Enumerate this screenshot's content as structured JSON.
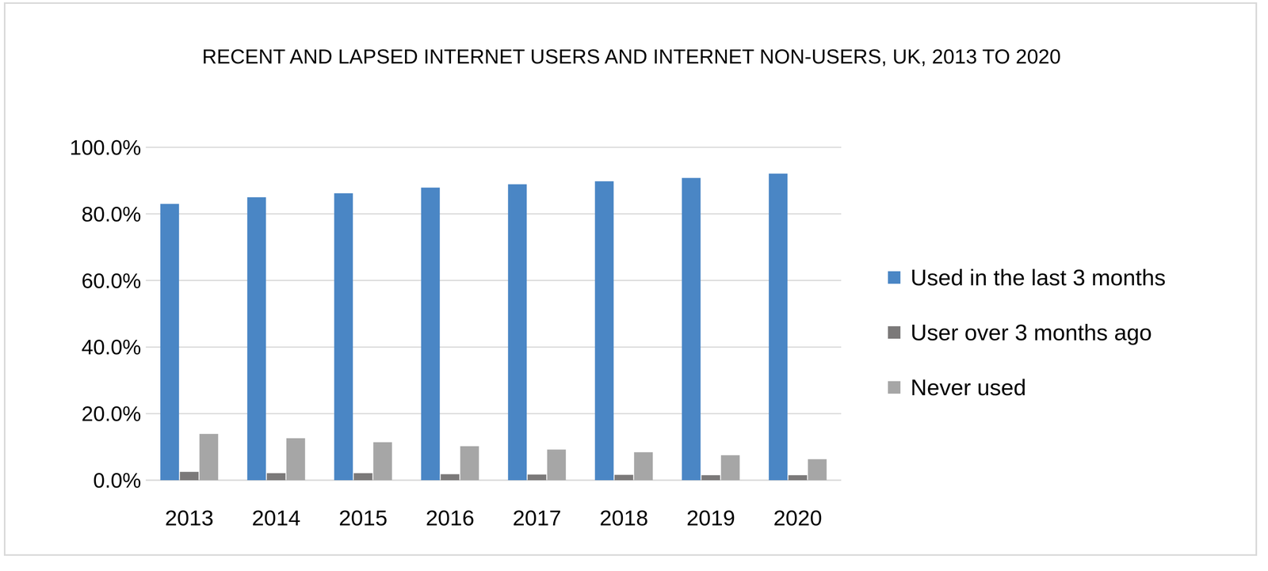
{
  "chart_data": {
    "type": "bar",
    "title": "RECENT AND LAPSED INTERNET USERS AND INTERNET NON-USERS, UK, 2013 TO 2020",
    "categories": [
      "2013",
      "2014",
      "2015",
      "2016",
      "2017",
      "2018",
      "2019",
      "2020"
    ],
    "series": [
      {
        "name": "Used in the last 3 months",
        "color": "#4a86c5",
        "values": [
          83.0,
          85.0,
          86.2,
          87.9,
          88.9,
          89.8,
          90.8,
          92.1
        ]
      },
      {
        "name": "User over 3 months ago",
        "color": "#7b7979",
        "values": [
          2.5,
          2.1,
          2.1,
          1.8,
          1.7,
          1.6,
          1.5,
          1.5
        ]
      },
      {
        "name": "Never used",
        "color": "#a6a6a6",
        "values": [
          13.9,
          12.6,
          11.4,
          10.2,
          9.2,
          8.4,
          7.5,
          6.3
        ]
      }
    ],
    "ylim": [
      0,
      100
    ],
    "yticks": [
      {
        "value": 0,
        "label": "0.0%"
      },
      {
        "value": 20,
        "label": "20.0%"
      },
      {
        "value": 40,
        "label": "40.0%"
      },
      {
        "value": 60,
        "label": "60.0%"
      },
      {
        "value": 80,
        "label": "80.0%"
      },
      {
        "value": 100,
        "label": "100.0%"
      }
    ],
    "grid": true,
    "legend": "right"
  }
}
